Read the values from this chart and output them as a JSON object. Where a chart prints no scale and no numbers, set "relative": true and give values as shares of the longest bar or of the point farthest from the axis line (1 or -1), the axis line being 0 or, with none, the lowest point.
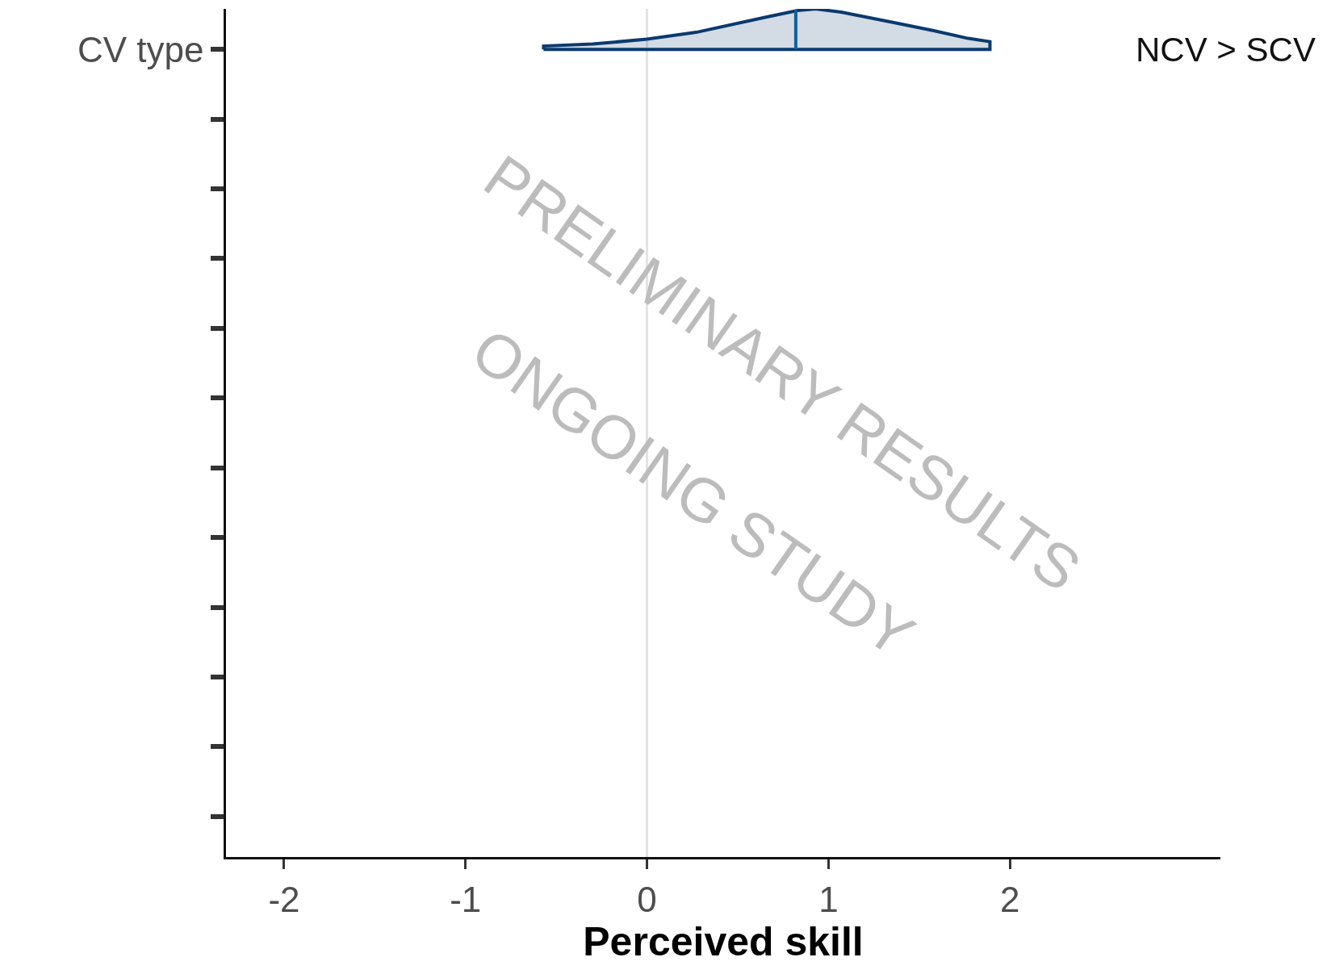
{
  "chart_data": {
    "type": "area",
    "xlabel": "Perceived skill",
    "x": [
      -0.57,
      -0.3,
      0,
      0.27,
      0.65,
      0.83,
      0.93,
      1.07,
      1.35,
      1.58,
      1.77,
      1.89
    ],
    "series": [
      {
        "color": "#0a3a6e",
        "values": [
          0.08,
          0.13,
          0.25,
          0.42,
          0.79,
          0.96,
          1,
          0.92,
          0.67,
          0.46,
          0.27,
          0.19
        ]
      }
    ],
    "relative": true,
    "xlim": [
      -2.32,
      3.16
    ],
    "xticks": [
      -2,
      -1,
      0,
      1,
      2
    ],
    "ref_lines": [
      {
        "axis": "x",
        "value": 0,
        "color": "#e3e3e3"
      },
      {
        "axis": "x",
        "value": 0.82,
        "color": "#1060a0"
      }
    ],
    "annotations": [
      "CV type",
      "NCV > SCV",
      "PRELIMINARY RESULTS",
      "ONGOING STUDY"
    ],
    "tick_labels": "x",
    "grid": false,
    "legend": false
  }
}
